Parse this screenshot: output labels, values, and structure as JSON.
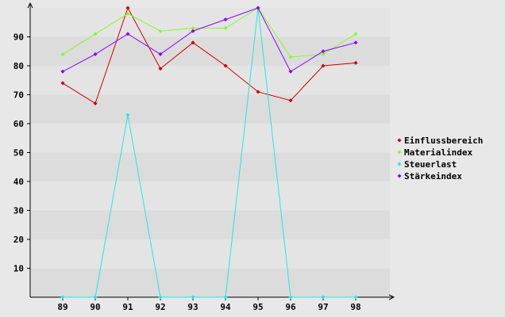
{
  "chart_data": {
    "type": "line",
    "title": "",
    "xlabel": "",
    "ylabel": "",
    "categories": [
      "89",
      "90",
      "91",
      "92",
      "93",
      "94",
      "95",
      "96",
      "97",
      "98"
    ],
    "ylim": [
      0,
      100
    ],
    "yticks": [
      10,
      20,
      30,
      40,
      50,
      60,
      70,
      80,
      90
    ],
    "grid": "horizontal bands",
    "legend_position": "right",
    "series": [
      {
        "name": "Einflussbereich",
        "color": "#cc0000",
        "values": [
          74,
          67,
          100,
          79,
          88,
          80,
          71,
          68,
          80,
          81
        ]
      },
      {
        "name": "Materialindex",
        "color": "#80ff20",
        "values": [
          84,
          91,
          98,
          92,
          93,
          93,
          100,
          83,
          84,
          91
        ]
      },
      {
        "name": "Steuerlast",
        "color": "#20e8e8",
        "values": [
          0,
          0,
          63,
          0,
          0,
          0,
          100,
          0,
          0,
          0
        ]
      },
      {
        "name": "Stärkeindex",
        "color": "#8800ff",
        "values": [
          78,
          84,
          91,
          84,
          92,
          96,
          100,
          78,
          85,
          88
        ]
      }
    ]
  }
}
